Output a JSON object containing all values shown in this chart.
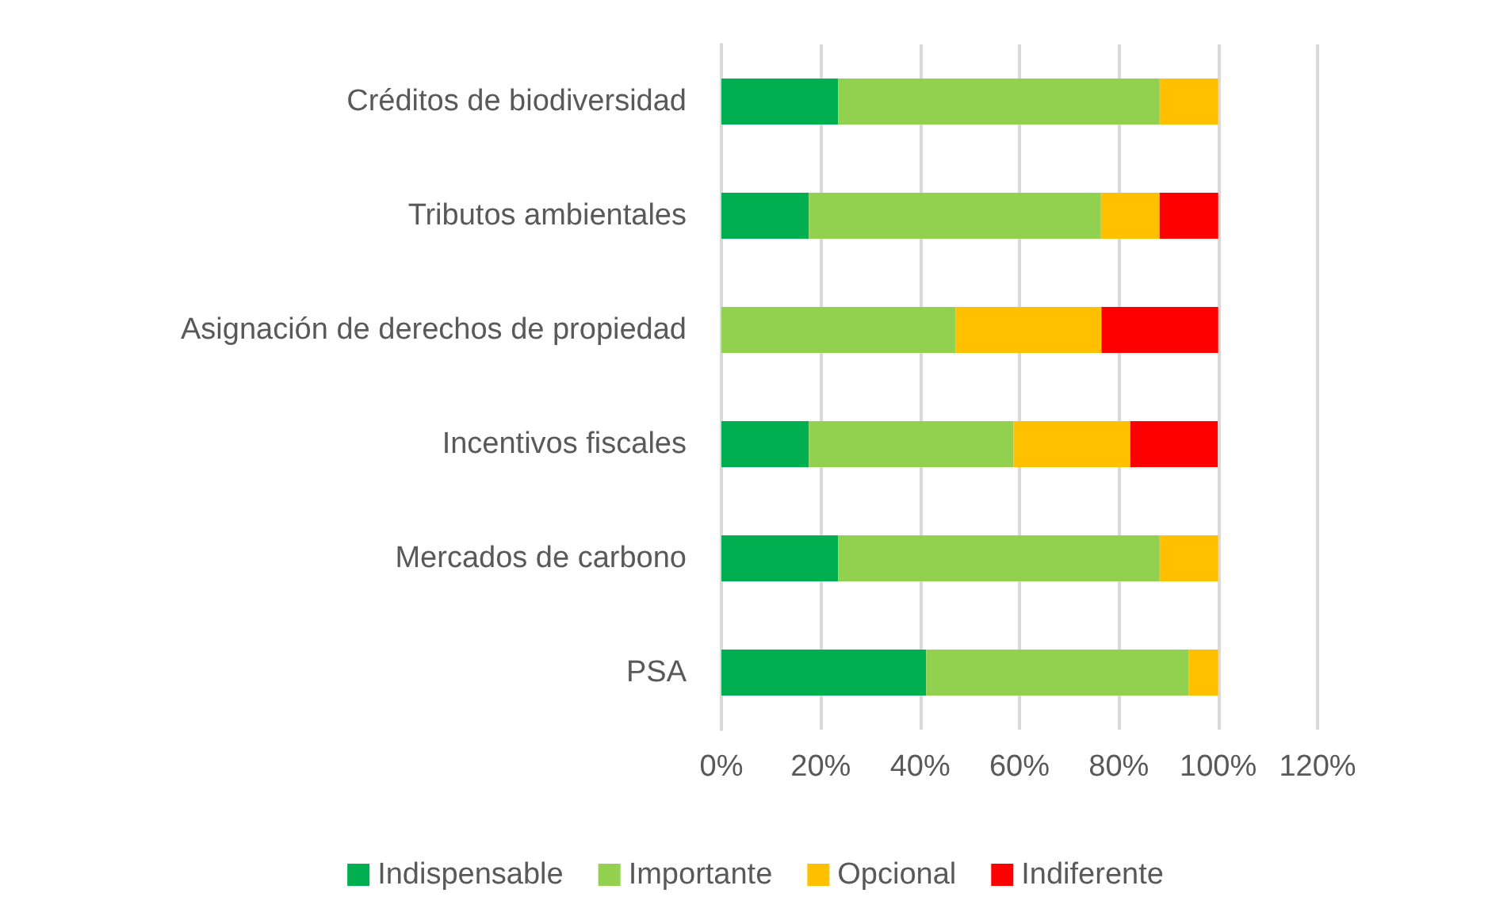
{
  "chart_data": {
    "type": "bar",
    "orientation": "horizontal",
    "stacked": true,
    "categories": [
      "Créditos de biodiversidad",
      "Tributos ambientales",
      "Asignación de derechos de propiedad",
      "Incentivos fiscales",
      "Mercados de carbono",
      "PSA"
    ],
    "series": [
      {
        "name": "Indispensable",
        "color": "#00b050",
        "values": [
          23.5,
          17.6,
          0,
          17.6,
          23.5,
          41.2
        ]
      },
      {
        "name": "Importante",
        "color": "#92d050",
        "values": [
          64.7,
          58.8,
          47.1,
          41.2,
          64.7,
          52.9
        ]
      },
      {
        "name": "Opcional",
        "color": "#ffc000",
        "values": [
          11.8,
          11.8,
          29.4,
          23.5,
          11.8,
          5.9
        ]
      },
      {
        "name": "Indiferente",
        "color": "#ff0000",
        "values": [
          0,
          11.8,
          23.5,
          17.6,
          0,
          0
        ]
      }
    ],
    "xlim": [
      0,
      120
    ],
    "xticks": [
      {
        "value": 0,
        "label": "0%"
      },
      {
        "value": 20,
        "label": "20%"
      },
      {
        "value": 40,
        "label": "40%"
      },
      {
        "value": 60,
        "label": "60%"
      },
      {
        "value": 80,
        "label": "80%"
      },
      {
        "value": 100,
        "label": "100%"
      },
      {
        "value": 120,
        "label": "120%"
      }
    ],
    "grid": "x",
    "legend": "bottom"
  }
}
